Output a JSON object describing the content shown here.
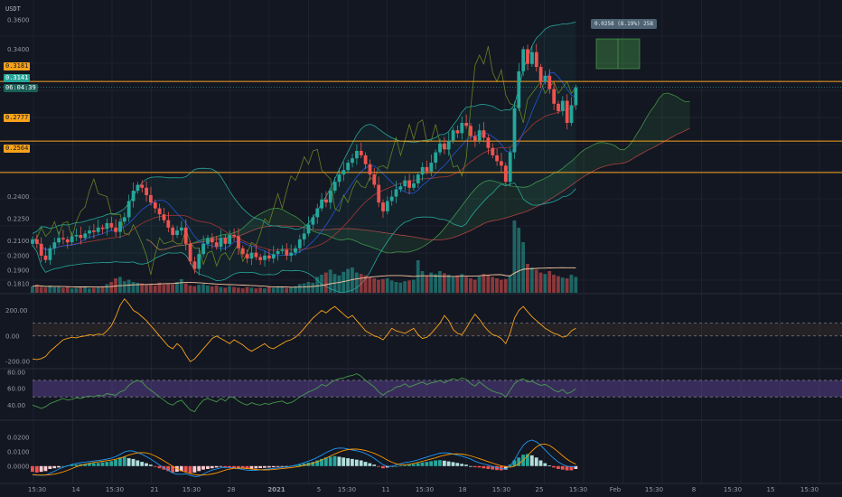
{
  "currency": "USDT",
  "colors": {
    "up": "#26a69a",
    "down": "#ef5350",
    "hline": "#f7a21b",
    "bg": "#131722",
    "grid": "#1e222d"
  },
  "price_tags": [
    {
      "label": "0.3181",
      "style": "orange",
      "value": 0.3181
    },
    {
      "label": "0.3141",
      "style": "green",
      "value": 0.3141
    },
    {
      "label": "06:04:39",
      "style": "green-dark",
      "value": 0.3105
    },
    {
      "label": "0.2777",
      "style": "orange",
      "value": 0.2777
    },
    {
      "label": "0.2564",
      "style": "orange",
      "value": 0.2564
    }
  ],
  "projection_label": "0.0258 (8.19%) 258",
  "time_labels": [
    "15:30",
    "14",
    "15:30",
    "21",
    "15:30",
    "28",
    "2021",
    "5",
    "15:30",
    "11",
    "15:30",
    "18",
    "15:30",
    "25",
    "15:30",
    "Feb",
    "15:30",
    "8",
    "15:30",
    "15",
    "15:30"
  ],
  "chart_data": [
    {
      "type": "candlestick",
      "title": "",
      "ylabel": "USDT",
      "ylim": [
        0.176,
        0.366
      ],
      "y_ticks": [
        "0.3600",
        "0.3400",
        "0.3181",
        "0.3141",
        "0.2777",
        "0.2564",
        "0.2400",
        "0.2250",
        "0.2100",
        "0.2000",
        "0.1900",
        "0.1810"
      ],
      "horizontal_levels": [
        0.3181,
        0.2777,
        0.2564
      ],
      "close": [
        0.211,
        0.208,
        0.2,
        0.197,
        0.205,
        0.209,
        0.212,
        0.211,
        0.209,
        0.213,
        0.214,
        0.212,
        0.215,
        0.217,
        0.216,
        0.219,
        0.218,
        0.222,
        0.219,
        0.216,
        0.223,
        0.226,
        0.237,
        0.244,
        0.248,
        0.246,
        0.241,
        0.236,
        0.232,
        0.228,
        0.224,
        0.219,
        0.214,
        0.217,
        0.219,
        0.208,
        0.196,
        0.191,
        0.201,
        0.208,
        0.212,
        0.209,
        0.206,
        0.212,
        0.208,
        0.214,
        0.213,
        0.205,
        0.201,
        0.198,
        0.202,
        0.199,
        0.197,
        0.2,
        0.198,
        0.201,
        0.203,
        0.204,
        0.2,
        0.202,
        0.205,
        0.211,
        0.215,
        0.221,
        0.226,
        0.232,
        0.238,
        0.236,
        0.244,
        0.25,
        0.255,
        0.258,
        0.263,
        0.266,
        0.271,
        0.268,
        0.262,
        0.255,
        0.248,
        0.236,
        0.23,
        0.237,
        0.24,
        0.245,
        0.247,
        0.251,
        0.246,
        0.249,
        0.255,
        0.26,
        0.257,
        0.263,
        0.27,
        0.276,
        0.272,
        0.278,
        0.285,
        0.283,
        0.29,
        0.288,
        0.281,
        0.278,
        0.285,
        0.28,
        0.273,
        0.268,
        0.264,
        0.261,
        0.25,
        0.27,
        0.3,
        0.325,
        0.34,
        0.33,
        0.338,
        0.328,
        0.318,
        0.322,
        0.313,
        0.303,
        0.298,
        0.305,
        0.29,
        0.302,
        0.314
      ],
      "volume_relative": [
        0.9,
        1.1,
        0.8,
        0.7,
        1,
        0.8,
        0.9,
        0.7,
        0.8,
        0.6,
        0.7,
        0.8,
        0.9,
        0.6,
        0.7,
        0.8,
        0.9,
        1.2,
        1.5,
        2.0,
        2.2,
        1.6,
        1.8,
        1.5,
        1.4,
        1.3,
        1.1,
        1.2,
        1,
        1.4,
        1.1,
        1.3,
        1.2,
        1.5,
        1.9,
        1.3,
        1,
        0.9,
        1.1,
        1.2,
        1,
        0.9,
        1,
        0.8,
        0.7,
        0.9,
        0.8,
        0.7,
        0.6,
        0.8,
        0.7,
        0.6,
        0.7,
        0.6,
        0.8,
        0.7,
        0.9,
        0.8,
        0.7,
        0.8,
        0.9,
        1.2,
        1.3,
        1.5,
        1.4,
        2.2,
        2.5,
        2.8,
        3.2,
        2.6,
        2.4,
        2.9,
        3.3,
        3.5,
        2.8,
        2.6,
        2.4,
        2.2,
        2.0,
        1.8,
        1.9,
        2.0,
        1.7,
        1.5,
        1.4,
        1.6,
        1.7,
        1.8,
        4.5,
        3.0,
        2.4,
        2.8,
        2.6,
        3.0,
        2.7,
        2.5,
        2.2,
        2.4,
        2.6,
        2.2,
        2.0,
        1.8,
        2.3,
        2.6,
        2.4,
        2.2,
        2.0,
        1.8,
        1.9,
        2.4,
        10,
        9,
        7,
        4,
        3.5,
        3.2,
        2.8,
        2.6,
        3.0,
        2.5,
        2.3,
        2.1,
        2.0,
        2.5,
        2.2
      ]
    },
    {
      "type": "line",
      "title": "",
      "ylim": [
        -235,
        260
      ],
      "y_ticks": [
        "200.00",
        "0.00",
        "-200.00"
      ],
      "levels": [
        100,
        0
      ],
      "values": [
        -180,
        -185,
        -178,
        -160,
        -120,
        -90,
        -60,
        -30,
        -20,
        -10,
        -15,
        -5,
        0,
        10,
        5,
        15,
        10,
        40,
        80,
        150,
        240,
        290,
        250,
        200,
        180,
        150,
        120,
        80,
        40,
        0,
        -40,
        -80,
        -100,
        -60,
        -90,
        -150,
        -200,
        -180,
        -140,
        -100,
        -60,
        -20,
        0,
        -20,
        -40,
        -60,
        -30,
        -50,
        -70,
        -100,
        -120,
        -100,
        -80,
        -60,
        -90,
        -100,
        -80,
        -60,
        -40,
        -30,
        -10,
        20,
        60,
        100,
        140,
        170,
        200,
        180,
        210,
        230,
        200,
        170,
        140,
        160,
        120,
        80,
        40,
        20,
        0,
        -10,
        -30,
        10,
        60,
        40,
        30,
        20,
        40,
        60,
        10,
        -20,
        -10,
        20,
        60,
        100,
        160,
        120,
        50,
        20,
        10,
        60,
        120,
        170,
        130,
        80,
        40,
        10,
        0,
        -20,
        -60,
        20,
        140,
        200,
        230,
        190,
        150,
        120,
        90,
        60,
        40,
        20,
        10,
        -10,
        0,
        40,
        60
      ]
    },
    {
      "type": "line",
      "title": "",
      "ylim": [
        25,
        82
      ],
      "y_ticks": [
        "80.00",
        "60.00",
        "40.00"
      ],
      "band": [
        70,
        50
      ],
      "values": [
        40,
        38,
        36,
        38,
        42,
        44,
        46,
        48,
        46,
        47,
        49,
        48,
        50,
        51,
        50,
        52,
        51,
        54,
        53,
        52,
        56,
        58,
        64,
        68,
        70,
        68,
        62,
        58,
        54,
        50,
        46,
        42,
        40,
        44,
        46,
        40,
        34,
        32,
        40,
        46,
        48,
        46,
        44,
        48,
        45,
        50,
        49,
        45,
        42,
        40,
        43,
        41,
        40,
        42,
        41,
        43,
        44,
        45,
        42,
        43,
        46,
        50,
        53,
        56,
        58,
        61,
        65,
        63,
        67,
        70,
        72,
        73,
        75,
        76,
        78,
        75,
        70,
        66,
        62,
        56,
        52,
        56,
        58,
        62,
        63,
        66,
        62,
        64,
        66,
        68,
        65,
        67,
        68,
        70,
        67,
        70,
        72,
        70,
        73,
        71,
        66,
        63,
        68,
        64,
        60,
        57,
        55,
        54,
        50,
        58,
        66,
        70,
        72,
        68,
        69,
        66,
        64,
        65,
        62,
        58,
        56,
        59,
        54,
        56,
        60
      ]
    },
    {
      "type": "bar",
      "title": "",
      "ylim": [
        -0.009,
        0.029
      ],
      "y_ticks": [
        "0.0200",
        "0.0100",
        "0.0000"
      ],
      "histogram": [
        -0.004,
        -0.0045,
        -0.004,
        -0.0035,
        -0.002,
        -0.0015,
        -0.001,
        0,
        0.0005,
        0.001,
        0.0012,
        0.0014,
        0.0016,
        0.0018,
        0.002,
        0.0022,
        0.0026,
        0.003,
        0.0035,
        0.0045,
        0.006,
        0.0065,
        0.0055,
        0.005,
        0.004,
        0.003,
        0.002,
        0.001,
        -0.0005,
        -0.0015,
        -0.0025,
        -0.0035,
        -0.0045,
        -0.004,
        -0.0035,
        -0.004,
        -0.005,
        -0.0045,
        -0.0035,
        -0.0025,
        -0.002,
        -0.0015,
        -0.001,
        -0.0005,
        -0.001,
        -0.0012,
        -0.0014,
        -0.0016,
        -0.0018,
        -0.002,
        -0.0018,
        -0.0016,
        -0.0014,
        -0.0012,
        -0.001,
        -0.0008,
        -0.0006,
        -0.0004,
        -0.0002,
        0.0003,
        0.0008,
        0.0012,
        0.0018,
        0.0024,
        0.003,
        0.004,
        0.005,
        0.006,
        0.0065,
        0.007,
        0.0065,
        0.006,
        0.0055,
        0.005,
        0.0045,
        0.004,
        0.003,
        0.002,
        0.001,
        -0.0005,
        -0.0015,
        -0.001,
        -0.0005,
        0,
        0.0003,
        0.0006,
        0.001,
        0.0014,
        0.002,
        0.0026,
        0.003,
        0.0035,
        0.004,
        0.0042,
        0.0038,
        0.0033,
        0.0028,
        0.0022,
        0.0016,
        0.001,
        0,
        -0.0008,
        -0.001,
        -0.0016,
        -0.002,
        -0.0024,
        -0.0028,
        -0.003,
        -0.0025,
        0.001,
        0.004,
        0.006,
        0.008,
        0.0085,
        0.0075,
        0.006,
        0.004,
        0.002,
        0.0005,
        -0.001,
        -0.002,
        -0.0025,
        -0.003,
        -0.003,
        -0.002
      ]
    }
  ]
}
